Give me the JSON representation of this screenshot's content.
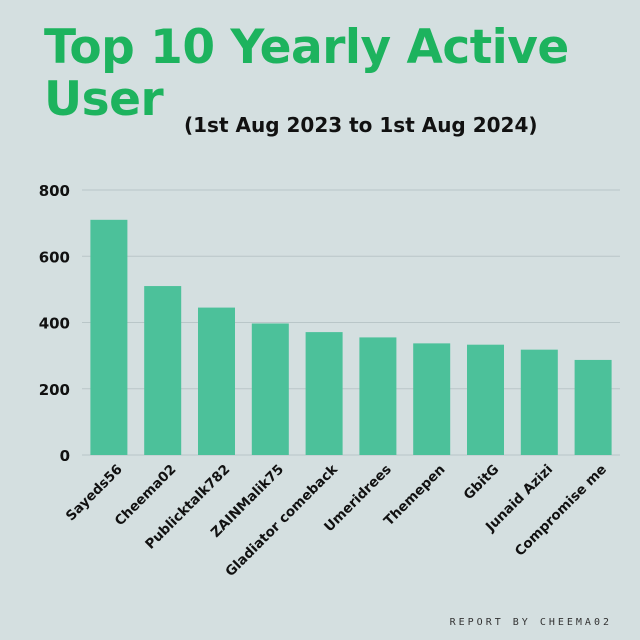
{
  "header": {
    "title": "Top 10 Yearly Active User",
    "subtitle": "(1st Aug 2023 to 1st Aug 2024)"
  },
  "footer": {
    "credit": "REPORT BY CHEEMA02"
  },
  "colors": {
    "background": "#d4dfe0",
    "bar": "#4cc19a",
    "title": "#1db35e",
    "grid": "#b9c6c8"
  },
  "chart_data": {
    "type": "bar",
    "title": "Top 10 Yearly Active User",
    "subtitle": "(1st Aug 2023 to 1st Aug 2024)",
    "xlabel": "",
    "ylabel": "",
    "categories": [
      "Sayeds56",
      "Cheema02",
      "Publicktalk782",
      "ZAINMalik75",
      "Gladiator comeback",
      "Umeridrees",
      "Themepen",
      "GbitG",
      "Junaid Azizi",
      "Compromise me"
    ],
    "values": [
      710,
      510,
      445,
      397,
      371,
      355,
      337,
      333,
      318,
      287
    ],
    "ylim": [
      0,
      800
    ],
    "yticks": [
      0,
      200,
      400,
      600,
      800
    ],
    "grid": true,
    "legend": "none"
  }
}
